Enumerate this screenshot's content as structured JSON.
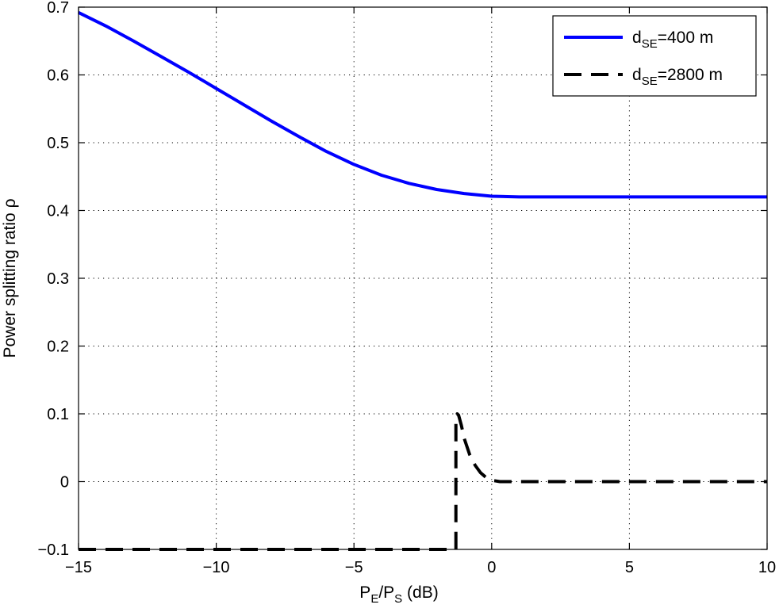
{
  "chart_data": {
    "type": "line",
    "title": "",
    "xlabel": {
      "main": "P",
      "sub1": "E",
      "mid": "/P",
      "sub2": "S",
      "tail": " (dB)"
    },
    "ylabel": "Power splitting ratio ρ",
    "xlim": [
      -15,
      10
    ],
    "ylim": [
      -0.1,
      0.7
    ],
    "xticks": [
      -15,
      -10,
      -5,
      0,
      5,
      10
    ],
    "yticks": [
      -0.1,
      0,
      0.1,
      0.2,
      0.3,
      0.4,
      0.5,
      0.6,
      0.7
    ],
    "xtick_labels": [
      "−15",
      "−10",
      "−5",
      "0",
      "5",
      "10"
    ],
    "ytick_labels": [
      "−0.1",
      "0",
      "0.1",
      "0.2",
      "0.3",
      "0.4",
      "0.5",
      "0.6",
      "0.7"
    ],
    "grid": true,
    "grid_style": "dotted",
    "legend_position": "top-right",
    "series": [
      {
        "name": "dSE=400 m",
        "legend": {
          "main": "d",
          "sub": "SE",
          "tail": "=400 m"
        },
        "color": "#0000ff",
        "style": "solid",
        "x": [
          -15,
          -14,
          -13,
          -12,
          -11,
          -10,
          -9,
          -8,
          -7,
          -6,
          -5,
          -4,
          -3,
          -2,
          -1,
          0,
          1,
          2,
          4,
          6,
          8,
          10
        ],
        "y": [
          0.692,
          0.672,
          0.65,
          0.627,
          0.604,
          0.58,
          0.556,
          0.532,
          0.509,
          0.487,
          0.468,
          0.452,
          0.44,
          0.431,
          0.425,
          0.421,
          0.42,
          0.42,
          0.42,
          0.42,
          0.42,
          0.42
        ]
      },
      {
        "name": "dSE=2800 m",
        "legend": {
          "main": "d",
          "sub": "SE",
          "tail": "=2800 m"
        },
        "color": "#000000",
        "style": "dashed",
        "x": [
          -15,
          -12,
          -9,
          -6,
          -3,
          -1.3,
          -1.3,
          -1.25,
          -1.2,
          -1.1,
          -1.0,
          -0.8,
          -0.6,
          -0.4,
          -0.2,
          0,
          0.3,
          1,
          3,
          6,
          10
        ],
        "y": [
          -0.1,
          -0.1,
          -0.1,
          -0.1,
          -0.1,
          -0.1,
          0.09,
          0.1,
          0.098,
          0.083,
          0.064,
          0.04,
          0.024,
          0.013,
          0.006,
          0.002,
          0.0,
          0.0,
          0.0,
          0.0,
          0.0
        ]
      }
    ]
  }
}
